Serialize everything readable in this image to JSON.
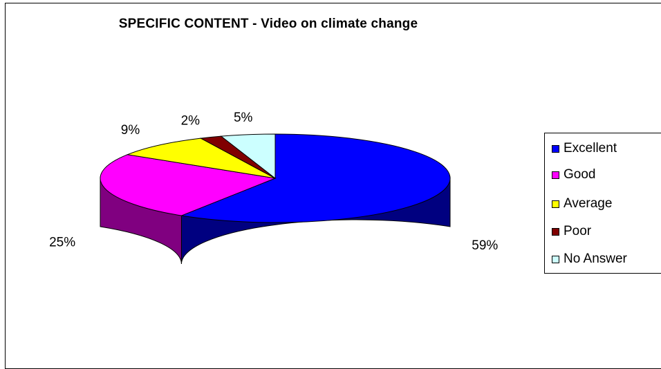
{
  "chart_data": {
    "type": "pie",
    "title": "SPECIFIC CONTENT - Video on climate change",
    "style": "3d",
    "legend_position": "right",
    "slices": [
      {
        "label": "Excellent",
        "value": 59,
        "display": "59%",
        "color": "#0000FF",
        "side_color": "#000080"
      },
      {
        "label": "Good",
        "value": 25,
        "display": "25%",
        "color": "#FF00FF",
        "side_color": "#800080"
      },
      {
        "label": "Average",
        "value": 9,
        "display": "9%",
        "color": "#FFFF00",
        "side_color": "#808000"
      },
      {
        "label": "Poor",
        "value": 2,
        "display": "2%",
        "color": "#800000",
        "side_color": "#400000"
      },
      {
        "label": "No Answer",
        "value": 5,
        "display": "5%",
        "color": "#CCFFFF",
        "side_color": "#66A0A0"
      }
    ]
  }
}
